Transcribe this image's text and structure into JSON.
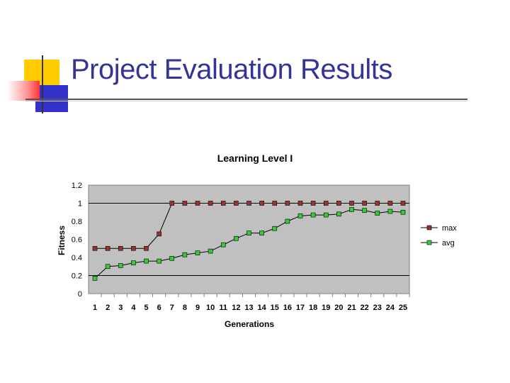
{
  "slide": {
    "title": "Project Evaluation Results"
  },
  "colors": {
    "title": "#333399",
    "plot_background": "#c0c0c0",
    "max_series": "#993333",
    "avg_series": "#33cc33",
    "logo_yellow": "#ffcc00",
    "logo_blue": "#3333cc",
    "logo_red": "#ff3333"
  },
  "chart_data": {
    "type": "line",
    "title": "Learning Level I",
    "xlabel": "Generations",
    "ylabel": "Fitness",
    "categories": [
      "1",
      "2",
      "3",
      "4",
      "5",
      "6",
      "7",
      "8",
      "9",
      "10",
      "11",
      "12",
      "13",
      "14",
      "15",
      "16",
      "17",
      "18",
      "19",
      "20",
      "21",
      "22",
      "23",
      "24",
      "25"
    ],
    "ylim": [
      0,
      1.2
    ],
    "yticks": [
      "0",
      "0.2",
      "0.4",
      "0.6",
      "0.8",
      "1",
      "1.2"
    ],
    "grid": "horizontal at 0.2 and 1",
    "legend": "right",
    "series": [
      {
        "name": "max",
        "color": "#993333",
        "values": [
          0.5,
          0.5,
          0.5,
          0.5,
          0.5,
          0.66,
          1,
          1,
          1,
          1,
          1,
          1,
          1,
          1,
          1,
          1,
          1,
          1,
          1,
          1,
          1,
          1,
          1,
          1,
          1
        ]
      },
      {
        "name": "avg",
        "color": "#33cc33",
        "values": [
          0.17,
          0.3,
          0.31,
          0.34,
          0.36,
          0.36,
          0.39,
          0.43,
          0.45,
          0.47,
          0.54,
          0.61,
          0.67,
          0.67,
          0.72,
          0.8,
          0.86,
          0.87,
          0.87,
          0.88,
          0.93,
          0.92,
          0.89,
          0.91,
          0.9
        ]
      }
    ]
  }
}
